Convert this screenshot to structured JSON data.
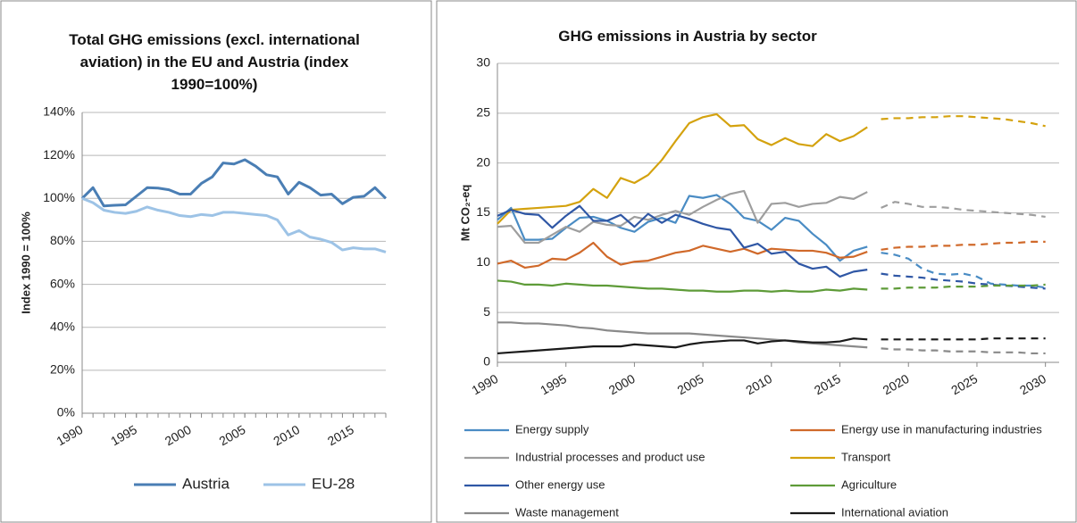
{
  "chart_data": [
    {
      "type": "line",
      "title": "Total GHG emissions (excl. international aviation) in the EU and Austria (index 1990=100%)",
      "y_label": "Index 1990 = 100%",
      "x": [
        1990,
        1991,
        1992,
        1993,
        1994,
        1995,
        1996,
        1997,
        1998,
        1999,
        2000,
        2001,
        2002,
        2003,
        2004,
        2005,
        2006,
        2007,
        2008,
        2009,
        2010,
        2011,
        2012,
        2013,
        2014,
        2015,
        2016,
        2017,
        2018
      ],
      "xlim": [
        1990,
        2018
      ],
      "xticks": [
        1990,
        1995,
        2000,
        2005,
        2010,
        2015
      ],
      "ylim": [
        0,
        140
      ],
      "yticks": [
        {
          "value": 0,
          "label": "0%"
        },
        {
          "value": 20,
          "label": "20%"
        },
        {
          "value": 40,
          "label": "40%"
        },
        {
          "value": 60,
          "label": "60%"
        },
        {
          "value": 80,
          "label": "80%"
        },
        {
          "value": 100,
          "label": "100%"
        },
        {
          "value": 120,
          "label": "120%"
        },
        {
          "value": 140,
          "label": "140%"
        }
      ],
      "grid": true,
      "legend": "bottom",
      "series": [
        {
          "name": "Austria",
          "color": "#4a7eb4",
          "values": [
            100,
            105,
            96.5,
            96.8,
            97,
            101,
            105,
            104.8,
            104,
            102,
            102,
            107,
            110,
            116.5,
            116,
            118,
            115,
            111,
            110,
            102,
            107.5,
            105,
            101.5,
            102,
            97.5,
            100.5,
            101,
            105,
            100
          ]
        },
        {
          "name": "EU-28",
          "color": "#9dc3e6",
          "values": [
            100,
            98,
            94.5,
            93.5,
            93,
            94,
            96,
            94.5,
            93.5,
            92,
            91.5,
            92.5,
            92,
            93.5,
            93.5,
            93,
            92.5,
            92,
            90,
            83,
            85,
            82,
            81,
            79.5,
            76,
            77,
            76.5,
            76.5,
            75
          ]
        }
      ]
    },
    {
      "type": "line",
      "title": "GHG emissions in  Austria by sector",
      "y_label": "Mt CO₂-eq",
      "x": [
        1990,
        1991,
        1992,
        1993,
        1994,
        1995,
        1996,
        1997,
        1998,
        1999,
        2000,
        2001,
        2002,
        2003,
        2004,
        2005,
        2006,
        2007,
        2008,
        2009,
        2010,
        2011,
        2012,
        2013,
        2014,
        2015,
        2016,
        2017
      ],
      "x_projection": [
        2018,
        2019,
        2020,
        2021,
        2022,
        2023,
        2024,
        2025,
        2026,
        2027,
        2028,
        2029,
        2030
      ],
      "xlim": [
        1990,
        2031
      ],
      "xticks": [
        1990,
        1995,
        2000,
        2005,
        2010,
        2015,
        2020,
        2025,
        2030
      ],
      "ylim": [
        0,
        30
      ],
      "yticks": [
        0,
        5,
        10,
        15,
        20,
        25,
        30
      ],
      "grid": true,
      "legend": "bottom",
      "series": [
        {
          "name": "Energy supply",
          "color": "#4a8cc4",
          "values": [
            14.3,
            15.5,
            12.3,
            12.3,
            12.4,
            13.5,
            14.5,
            14.6,
            14.2,
            13.5,
            13.1,
            14.1,
            14.5,
            14.0,
            16.7,
            16.5,
            16.8,
            15.9,
            14.5,
            14.2,
            13.3,
            14.5,
            14.2,
            12.9,
            11.8,
            10.2,
            11.2,
            11.6
          ],
          "projection": [
            11.0,
            10.8,
            10.4,
            9.4,
            8.9,
            8.8,
            8.9,
            8.6,
            7.9,
            7.8,
            7.7,
            7.7,
            7.5
          ]
        },
        {
          "name": "Energy use in manufacturing industries",
          "color": "#d0692a",
          "values": [
            9.9,
            10.2,
            9.5,
            9.7,
            10.4,
            10.3,
            11.0,
            12.0,
            10.6,
            9.8,
            10.1,
            10.2,
            10.6,
            11.0,
            11.2,
            11.7,
            11.4,
            11.1,
            11.4,
            10.9,
            11.4,
            11.3,
            11.2,
            11.2,
            11.0,
            10.5,
            10.6,
            11.1
          ],
          "projection": [
            11.3,
            11.5,
            11.6,
            11.6,
            11.7,
            11.7,
            11.8,
            11.8,
            11.9,
            12.0,
            12.0,
            12.1,
            12.1
          ]
        },
        {
          "name": "Industrial processes and product use",
          "color": "#9e9e9e",
          "values": [
            13.6,
            13.7,
            12.0,
            12.0,
            12.8,
            13.6,
            13.1,
            14.1,
            13.8,
            13.7,
            14.6,
            14.3,
            14.8,
            15.2,
            14.8,
            15.6,
            16.3,
            16.9,
            17.2,
            14.0,
            15.9,
            16.0,
            15.6,
            15.9,
            16.0,
            16.6,
            16.4,
            17.1
          ],
          "projection": [
            15.5,
            16.1,
            15.9,
            15.6,
            15.6,
            15.5,
            15.3,
            15.2,
            15.1,
            15.0,
            14.9,
            14.8,
            14.6
          ]
        },
        {
          "name": "Transport",
          "color": "#d4a20e",
          "values": [
            13.9,
            15.3,
            15.4,
            15.5,
            15.6,
            15.7,
            16.1,
            17.4,
            16.5,
            18.5,
            18.0,
            18.8,
            20.3,
            22.2,
            24.0,
            24.6,
            24.9,
            23.7,
            23.8,
            22.4,
            21.8,
            22.5,
            21.9,
            21.7,
            22.9,
            22.2,
            22.7,
            23.6
          ],
          "projection": [
            24.4,
            24.5,
            24.5,
            24.6,
            24.6,
            24.7,
            24.7,
            24.6,
            24.5,
            24.4,
            24.2,
            24.0,
            23.7
          ]
        },
        {
          "name": "Other energy use",
          "color": "#2f57a5",
          "values": [
            14.7,
            15.3,
            14.9,
            14.8,
            13.5,
            14.7,
            15.7,
            14.2,
            14.2,
            14.8,
            13.6,
            14.9,
            14.0,
            14.8,
            14.4,
            13.9,
            13.5,
            13.3,
            11.5,
            11.9,
            10.9,
            11.1,
            9.9,
            9.4,
            9.6,
            8.6,
            9.1,
            9.3
          ],
          "projection": [
            8.9,
            8.7,
            8.6,
            8.5,
            8.3,
            8.2,
            8.1,
            7.9,
            7.8,
            7.7,
            7.6,
            7.5,
            7.4
          ]
        },
        {
          "name": "Agriculture",
          "color": "#5e9b38",
          "values": [
            8.2,
            8.1,
            7.8,
            7.8,
            7.7,
            7.9,
            7.8,
            7.7,
            7.7,
            7.6,
            7.5,
            7.4,
            7.4,
            7.3,
            7.2,
            7.2,
            7.1,
            7.1,
            7.2,
            7.2,
            7.1,
            7.2,
            7.1,
            7.1,
            7.3,
            7.2,
            7.4,
            7.3
          ],
          "projection": [
            7.4,
            7.4,
            7.5,
            7.5,
            7.5,
            7.6,
            7.6,
            7.6,
            7.7,
            7.7,
            7.7,
            7.7,
            7.8
          ]
        },
        {
          "name": "Waste management",
          "color": "#8a8a8a",
          "values": [
            4.0,
            4.0,
            3.9,
            3.9,
            3.8,
            3.7,
            3.5,
            3.4,
            3.2,
            3.1,
            3.0,
            2.9,
            2.9,
            2.9,
            2.9,
            2.8,
            2.7,
            2.6,
            2.5,
            2.4,
            2.3,
            2.2,
            2.0,
            1.9,
            1.8,
            1.7,
            1.6,
            1.5
          ],
          "projection": [
            1.4,
            1.3,
            1.3,
            1.2,
            1.2,
            1.1,
            1.1,
            1.1,
            1.0,
            1.0,
            1.0,
            0.9,
            0.9
          ]
        },
        {
          "name": "International aviation",
          "color": "#1a1a1a",
          "values": [
            0.9,
            1.0,
            1.1,
            1.2,
            1.3,
            1.4,
            1.5,
            1.6,
            1.6,
            1.6,
            1.8,
            1.7,
            1.6,
            1.5,
            1.8,
            2.0,
            2.1,
            2.2,
            2.2,
            1.9,
            2.1,
            2.2,
            2.1,
            2.0,
            2.0,
            2.1,
            2.4,
            2.3
          ],
          "projection": [
            2.3,
            2.3,
            2.3,
            2.3,
            2.3,
            2.3,
            2.3,
            2.3,
            2.4,
            2.4,
            2.4,
            2.4,
            2.4
          ]
        }
      ]
    }
  ]
}
